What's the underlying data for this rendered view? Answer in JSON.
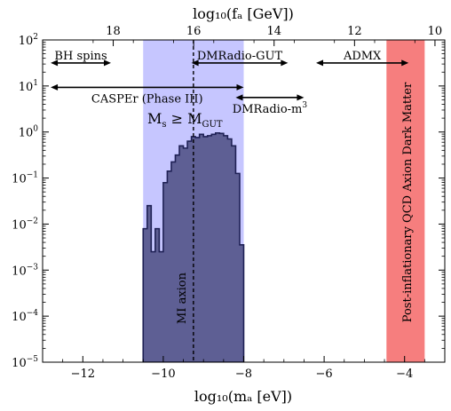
{
  "chart_data": {
    "type": "histogram",
    "xlabel": "log₁₀(mₐ [eV])",
    "top_xlabel": "log₁₀(fₐ [GeV])",
    "xlim": [
      -13.0,
      -3.0
    ],
    "ylim": [
      -5,
      2
    ],
    "y_scale": "log",
    "x_ticks": [
      -12,
      -10,
      -8,
      -6,
      -4
    ],
    "x_tick_labels": [
      "−12",
      "−10",
      "−8",
      "−6",
      "−4"
    ],
    "top_ticks": [
      18,
      16,
      14,
      12,
      10
    ],
    "top_tick_labels": [
      "18",
      "16",
      "14",
      "12",
      "10"
    ],
    "y_ticks": [
      -5,
      -4,
      -3,
      -2,
      -1,
      0,
      1,
      2
    ],
    "y_tick_base": "10",
    "y_tick_exponents": [
      "−5",
      "−4",
      "−3",
      "−2",
      "−1",
      "0",
      "1",
      "2"
    ],
    "histogram": {
      "color": "#5e5f94",
      "edge_color": "#1f2155",
      "bin_edges": [
        -10.5,
        -10.4,
        -10.3,
        -10.2,
        -10.1,
        -10.0,
        -9.9,
        -9.8,
        -9.7,
        -9.6,
        -9.5,
        -9.4,
        -9.3,
        -9.2,
        -9.1,
        -9.0,
        -8.9,
        -8.8,
        -8.7,
        -8.6,
        -8.5,
        -8.4,
        -8.3,
        -8.2,
        -8.1,
        -8.0
      ],
      "log10_values": [
        -2.1,
        -1.6,
        -2.6,
        -2.1,
        -2.6,
        -1.1,
        -0.85,
        -0.65,
        -0.5,
        -0.3,
        -0.35,
        -0.2,
        -0.1,
        -0.12,
        -0.05,
        -0.1,
        -0.08,
        -0.05,
        -0.02,
        -0.03,
        -0.08,
        -0.15,
        -0.3,
        -0.9,
        -2.45
      ]
    },
    "bands": [
      {
        "label": "",
        "x0": -10.5,
        "x1": -8.0,
        "color": "#c6c6ff"
      },
      {
        "label": "Post-inflationary QCD Axion Dark Matter",
        "x0": -4.45,
        "x1": -3.5,
        "color": "#f67e7e"
      }
    ],
    "vline": {
      "x": -9.25,
      "label": "MI axion",
      "style": "dashed"
    },
    "region_label": {
      "text": "Mₛ ≥ M_GUT",
      "main": "M",
      "sub1": "s",
      "rel": " ≥ ",
      "main2": "M",
      "sub2": "GUT"
    },
    "ranges": [
      {
        "label": "BH spins",
        "x0": -12.8,
        "x1": -11.3,
        "y": 1.5
      },
      {
        "label": "CASPEr (Phase III)",
        "x0": -12.8,
        "x1": -8.0,
        "y": 0.97
      },
      {
        "label": "DMRadio-GUT",
        "x0": -9.3,
        "x1": -6.9,
        "y": 1.5
      },
      {
        "label": "DMRadio-m",
        "label_sup": "3",
        "x0": -8.2,
        "x1": -6.5,
        "y": 0.75
      },
      {
        "label": "ADMX",
        "x0": -6.2,
        "x1": -3.9,
        "y": 1.5
      }
    ]
  }
}
